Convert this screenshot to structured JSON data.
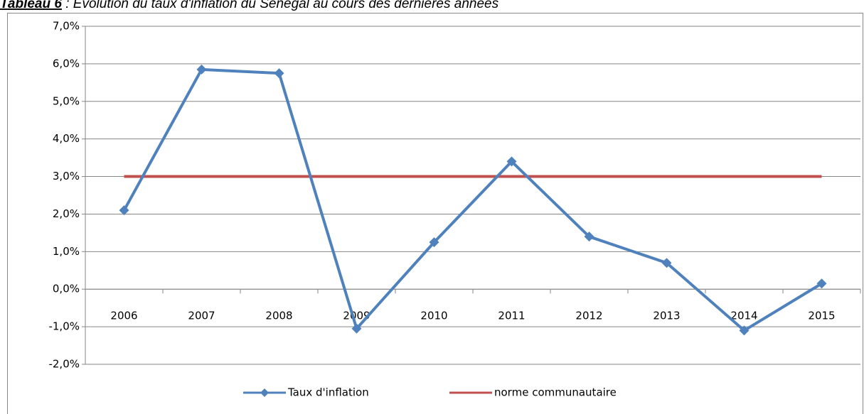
{
  "chart_data": {
    "type": "line",
    "title_label": "Tableau 6",
    "title": " : Evolution du taux d'inflation du Sénégal au cours des dernières années",
    "categories": [
      "2006",
      "2007",
      "2008",
      "2009",
      "2010",
      "2011",
      "2012",
      "2013",
      "2014",
      "2015"
    ],
    "series": [
      {
        "name": "Taux d'inflation",
        "color": "#4f81bd",
        "marker": "diamond",
        "values": [
          2.1,
          5.85,
          5.75,
          -1.05,
          1.25,
          3.4,
          1.4,
          0.7,
          -1.1,
          0.15
        ]
      },
      {
        "name": "norme communautaire",
        "color": "#c0504d",
        "values": [
          3,
          3,
          3,
          3,
          3,
          3,
          3,
          3,
          3,
          3
        ]
      }
    ],
    "ylim": [
      -2,
      7
    ],
    "yticks": [
      {
        "value": -2,
        "label": "-2,0%"
      },
      {
        "value": -1,
        "label": "-1,0%"
      },
      {
        "value": 0,
        "label": "0,0%"
      },
      {
        "value": 1,
        "label": "1,0%"
      },
      {
        "value": 2,
        "label": "2,0%"
      },
      {
        "value": 3,
        "label": "3,0%"
      },
      {
        "value": 4,
        "label": "4,0%"
      },
      {
        "value": 5,
        "label": "5,0%"
      },
      {
        "value": 6,
        "label": "6,0%"
      },
      {
        "value": 7,
        "label": "7,0%"
      }
    ],
    "grid": true,
    "legend": "bottom"
  }
}
